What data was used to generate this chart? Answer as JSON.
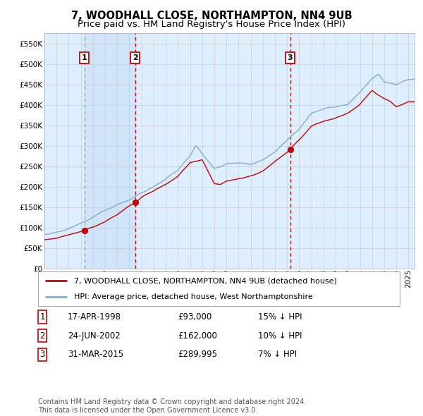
{
  "title": "7, WOODHALL CLOSE, NORTHAMPTON, NN4 9UB",
  "subtitle": "Price paid vs. HM Land Registry's House Price Index (HPI)",
  "ylim": [
    0,
    575000
  ],
  "yticks": [
    0,
    50000,
    100000,
    150000,
    200000,
    250000,
    300000,
    350000,
    400000,
    450000,
    500000,
    550000
  ],
  "ytick_labels": [
    "£0",
    "£50K",
    "£100K",
    "£150K",
    "£200K",
    "£250K",
    "£300K",
    "£350K",
    "£400K",
    "£450K",
    "£500K",
    "£550K"
  ],
  "xlim_start": 1995.0,
  "xlim_end": 2025.5,
  "transaction_color": "#cc0000",
  "hpi_color": "#88aacc",
  "background_color": "#ddeeff",
  "plot_bg_color": "#ffffff",
  "grid_color": "#cccccc",
  "transactions": [
    {
      "date_num": 1998.29,
      "price": 93000,
      "label": "1"
    },
    {
      "date_num": 2002.48,
      "price": 162000,
      "label": "2"
    },
    {
      "date_num": 2015.25,
      "price": 289995,
      "label": "3"
    }
  ],
  "legend_entries": [
    "7, WOODHALL CLOSE, NORTHAMPTON, NN4 9UB (detached house)",
    "HPI: Average price, detached house, West Northamptonshire"
  ],
  "table_rows": [
    {
      "label": "1",
      "date": "17-APR-1998",
      "price": "£93,000",
      "hpi": "15% ↓ HPI"
    },
    {
      "label": "2",
      "date": "24-JUN-2002",
      "price": "£162,000",
      "hpi": "10% ↓ HPI"
    },
    {
      "label": "3",
      "date": "31-MAR-2015",
      "price": "£289,995",
      "hpi": "7% ↓ HPI"
    }
  ],
  "footnote": "Contains HM Land Registry data © Crown copyright and database right 2024.\nThis data is licensed under the Open Government Licence v3.0.",
  "title_fontsize": 10.5,
  "subtitle_fontsize": 9.5,
  "tick_fontsize": 7.5,
  "legend_fontsize": 8,
  "table_fontsize": 8.5,
  "footnote_fontsize": 7
}
